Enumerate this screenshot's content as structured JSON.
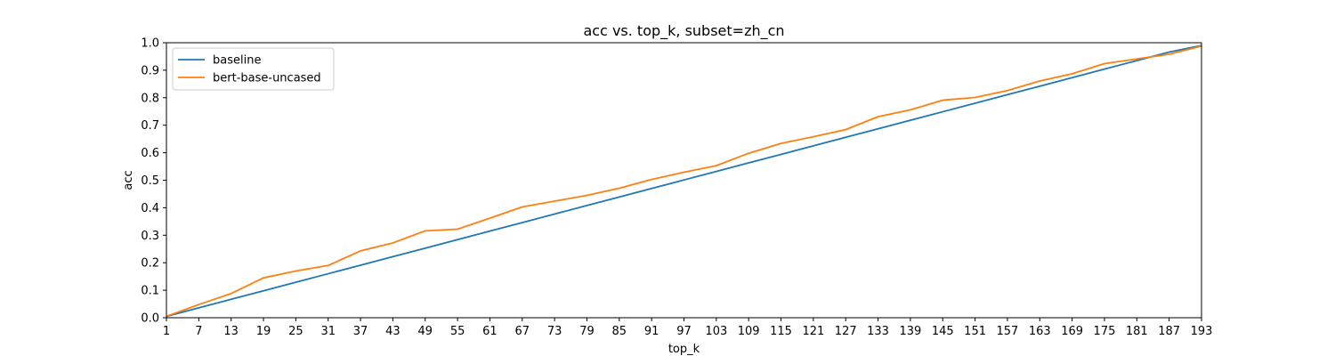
{
  "chart_data": {
    "type": "line",
    "title": "acc vs. top_k, subset=zh_cn",
    "xlabel": "top_k",
    "ylabel": "acc",
    "x": [
      1,
      7,
      13,
      19,
      25,
      31,
      37,
      43,
      49,
      55,
      61,
      67,
      73,
      79,
      85,
      91,
      97,
      103,
      109,
      115,
      121,
      127,
      133,
      139,
      145,
      151,
      157,
      163,
      169,
      175,
      181,
      187,
      193
    ],
    "xlim": [
      1,
      193
    ],
    "ylim": [
      0,
      1
    ],
    "yticks": [
      0.0,
      0.1,
      0.2,
      0.3,
      0.4,
      0.5,
      0.6,
      0.7,
      0.8,
      0.9,
      1.0
    ],
    "yticklabels": [
      "0.0",
      "0.1",
      "0.2",
      "0.3",
      "0.4",
      "0.5",
      "0.6",
      "0.7",
      "0.8",
      "0.9",
      "1.0"
    ],
    "xticklabels": [
      "1",
      "7",
      "13",
      "19",
      "25",
      "31",
      "37",
      "43",
      "49",
      "55",
      "61",
      "67",
      "73",
      "79",
      "85",
      "91",
      "97",
      "103",
      "109",
      "115",
      "121",
      "127",
      "133",
      "139",
      "145",
      "151",
      "157",
      "163",
      "169",
      "175",
      "181",
      "187",
      "193"
    ],
    "grid": false,
    "legend": "top-left",
    "series": [
      {
        "name": "baseline",
        "color": "#1f77b4",
        "values": [
          0.005,
          0.036,
          0.067,
          0.098,
          0.129,
          0.16,
          0.191,
          0.222,
          0.253,
          0.284,
          0.315,
          0.346,
          0.377,
          0.408,
          0.439,
          0.47,
          0.501,
          0.532,
          0.563,
          0.594,
          0.625,
          0.656,
          0.687,
          0.718,
          0.749,
          0.78,
          0.811,
          0.842,
          0.873,
          0.904,
          0.935,
          0.966,
          0.99
        ]
      },
      {
        "name": "bert-base-uncased",
        "color": "#ff7f0e",
        "values": [
          0.005,
          0.048,
          0.088,
          0.145,
          0.17,
          0.19,
          0.243,
          0.272,
          0.316,
          0.322,
          0.362,
          0.403,
          0.424,
          0.445,
          0.471,
          0.503,
          0.529,
          0.553,
          0.598,
          0.634,
          0.658,
          0.684,
          0.731,
          0.756,
          0.791,
          0.801,
          0.826,
          0.861,
          0.887,
          0.924,
          0.941,
          0.958,
          0.988
        ]
      }
    ]
  }
}
